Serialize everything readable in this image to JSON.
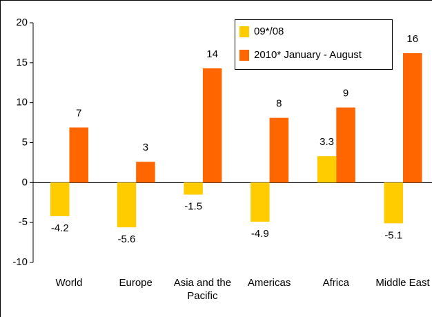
{
  "chart_data": {
    "type": "bar",
    "categories": [
      "World",
      "Europe",
      "Asia and the Pacific",
      "Americas",
      "Africa",
      "Middle East"
    ],
    "series": [
      {
        "name": "09*/08",
        "color": "#ffcc00",
        "values": [
          -4.2,
          -5.6,
          -1.5,
          -4.9,
          3.3,
          -5.1
        ]
      },
      {
        "name": "2010* January - August",
        "color": "#ff6600",
        "values": [
          6.9,
          2.6,
          14.3,
          8.1,
          9.4,
          16.2
        ],
        "value_labels": [
          "7",
          "3",
          "14",
          "8",
          "9",
          "16"
        ]
      }
    ],
    "ylim": [
      -10,
      20
    ],
    "yticks": [
      -10,
      -5,
      0,
      5,
      10,
      15,
      20
    ],
    "legend": "top-right"
  }
}
